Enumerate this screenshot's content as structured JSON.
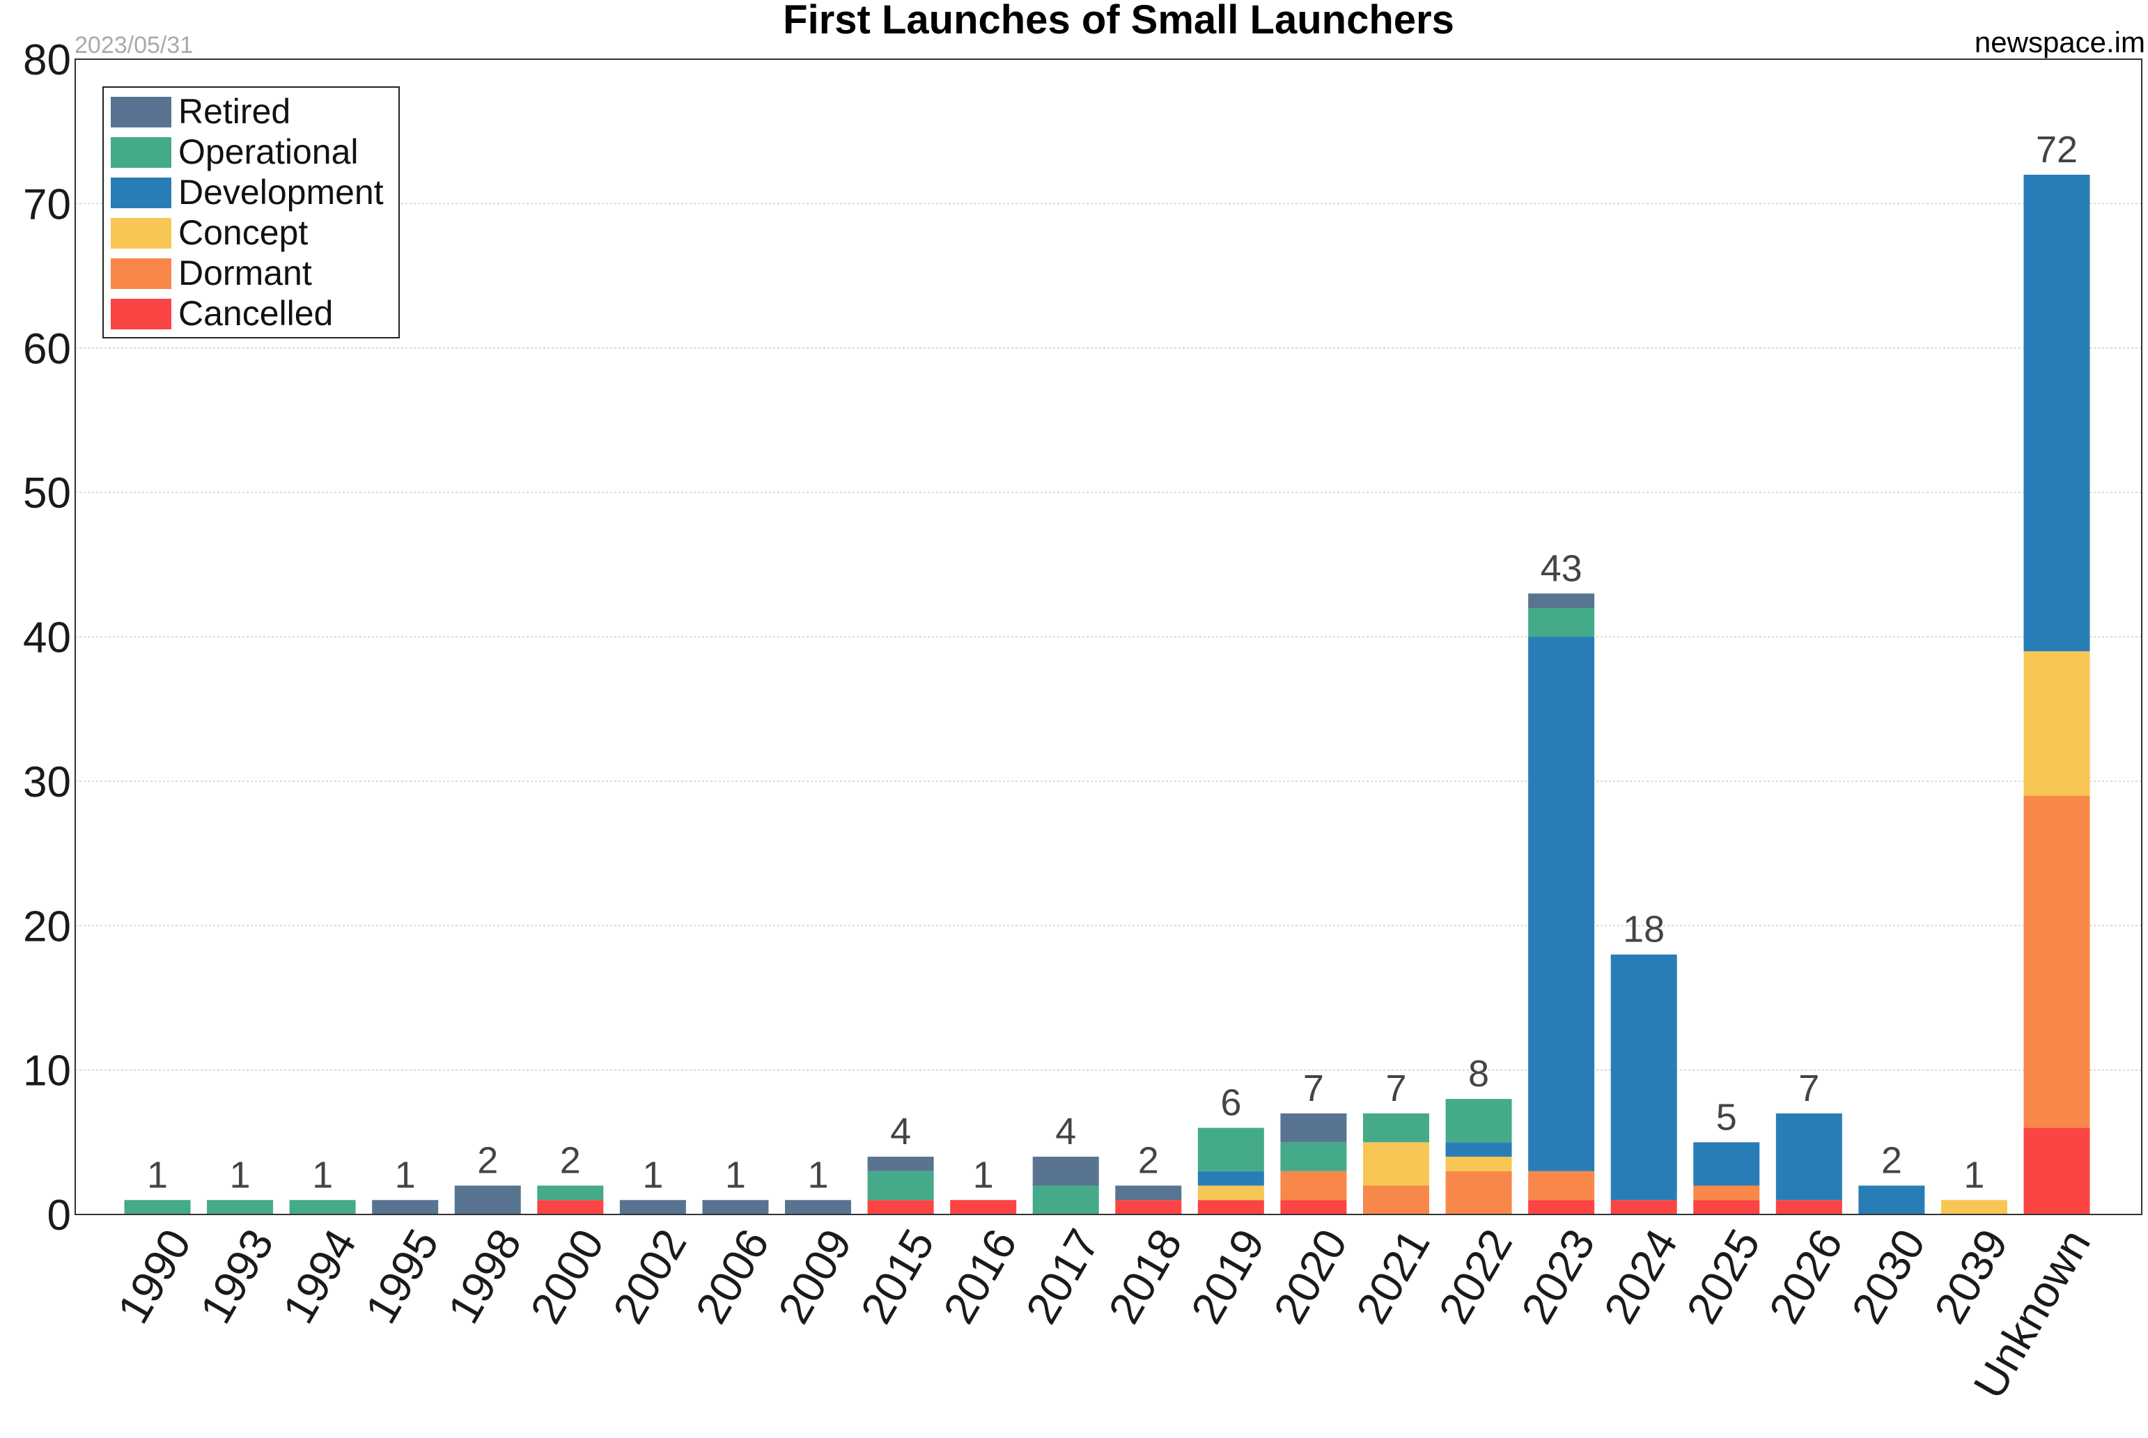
{
  "chart_data": {
    "type": "bar",
    "stacked": true,
    "title": "First Launches of Small Launchers",
    "date_note": "2023/05/31",
    "credit": "newspace.im",
    "ylim": [
      0,
      80
    ],
    "yticks": [
      0,
      10,
      20,
      30,
      40,
      50,
      60,
      70,
      80
    ],
    "grid": true,
    "legend_position": "top-left",
    "categories": [
      "1990",
      "1993",
      "1994",
      "1995",
      "1998",
      "2000",
      "2002",
      "2006",
      "2009",
      "2015",
      "2016",
      "2017",
      "2018",
      "2019",
      "2020",
      "2021",
      "2022",
      "2023",
      "2024",
      "2025",
      "2026",
      "2030",
      "2039",
      "Unknown"
    ],
    "series": [
      {
        "name": "Cancelled",
        "color": "#fb4444",
        "values": [
          0,
          0,
          0,
          0,
          0,
          1,
          0,
          0,
          0,
          1,
          1,
          0,
          1,
          1,
          1,
          0,
          0,
          1,
          1,
          1,
          1,
          0,
          0,
          6
        ]
      },
      {
        "name": "Dormant",
        "color": "#f8874a",
        "values": [
          0,
          0,
          0,
          0,
          0,
          0,
          0,
          0,
          0,
          0,
          0,
          0,
          0,
          0,
          2,
          2,
          3,
          2,
          0,
          1,
          0,
          0,
          0,
          23
        ]
      },
      {
        "name": "Concept",
        "color": "#f8c655",
        "values": [
          0,
          0,
          0,
          0,
          0,
          0,
          0,
          0,
          0,
          0,
          0,
          0,
          0,
          1,
          0,
          3,
          1,
          0,
          0,
          0,
          0,
          0,
          1,
          10
        ]
      },
      {
        "name": "Development",
        "color": "#297db7",
        "values": [
          0,
          0,
          0,
          0,
          0,
          0,
          0,
          0,
          0,
          0,
          0,
          0,
          0,
          1,
          0,
          0,
          1,
          37,
          17,
          3,
          6,
          2,
          0,
          33
        ]
      },
      {
        "name": "Operational",
        "color": "#45aa8a",
        "values": [
          1,
          1,
          1,
          0,
          0,
          1,
          0,
          0,
          0,
          2,
          0,
          2,
          0,
          3,
          2,
          2,
          3,
          2,
          0,
          0,
          0,
          0,
          0,
          0
        ]
      },
      {
        "name": "Retired",
        "color": "#587491",
        "values": [
          0,
          0,
          0,
          1,
          2,
          0,
          1,
          1,
          1,
          1,
          0,
          2,
          1,
          0,
          2,
          0,
          0,
          1,
          0,
          0,
          0,
          0,
          0,
          0
        ]
      }
    ],
    "totals": [
      1,
      1,
      1,
      1,
      2,
      2,
      1,
      1,
      1,
      4,
      1,
      4,
      2,
      6,
      7,
      7,
      8,
      43,
      18,
      5,
      7,
      2,
      1,
      72
    ],
    "legend_order": [
      "Retired",
      "Operational",
      "Development",
      "Concept",
      "Dormant",
      "Cancelled"
    ]
  }
}
